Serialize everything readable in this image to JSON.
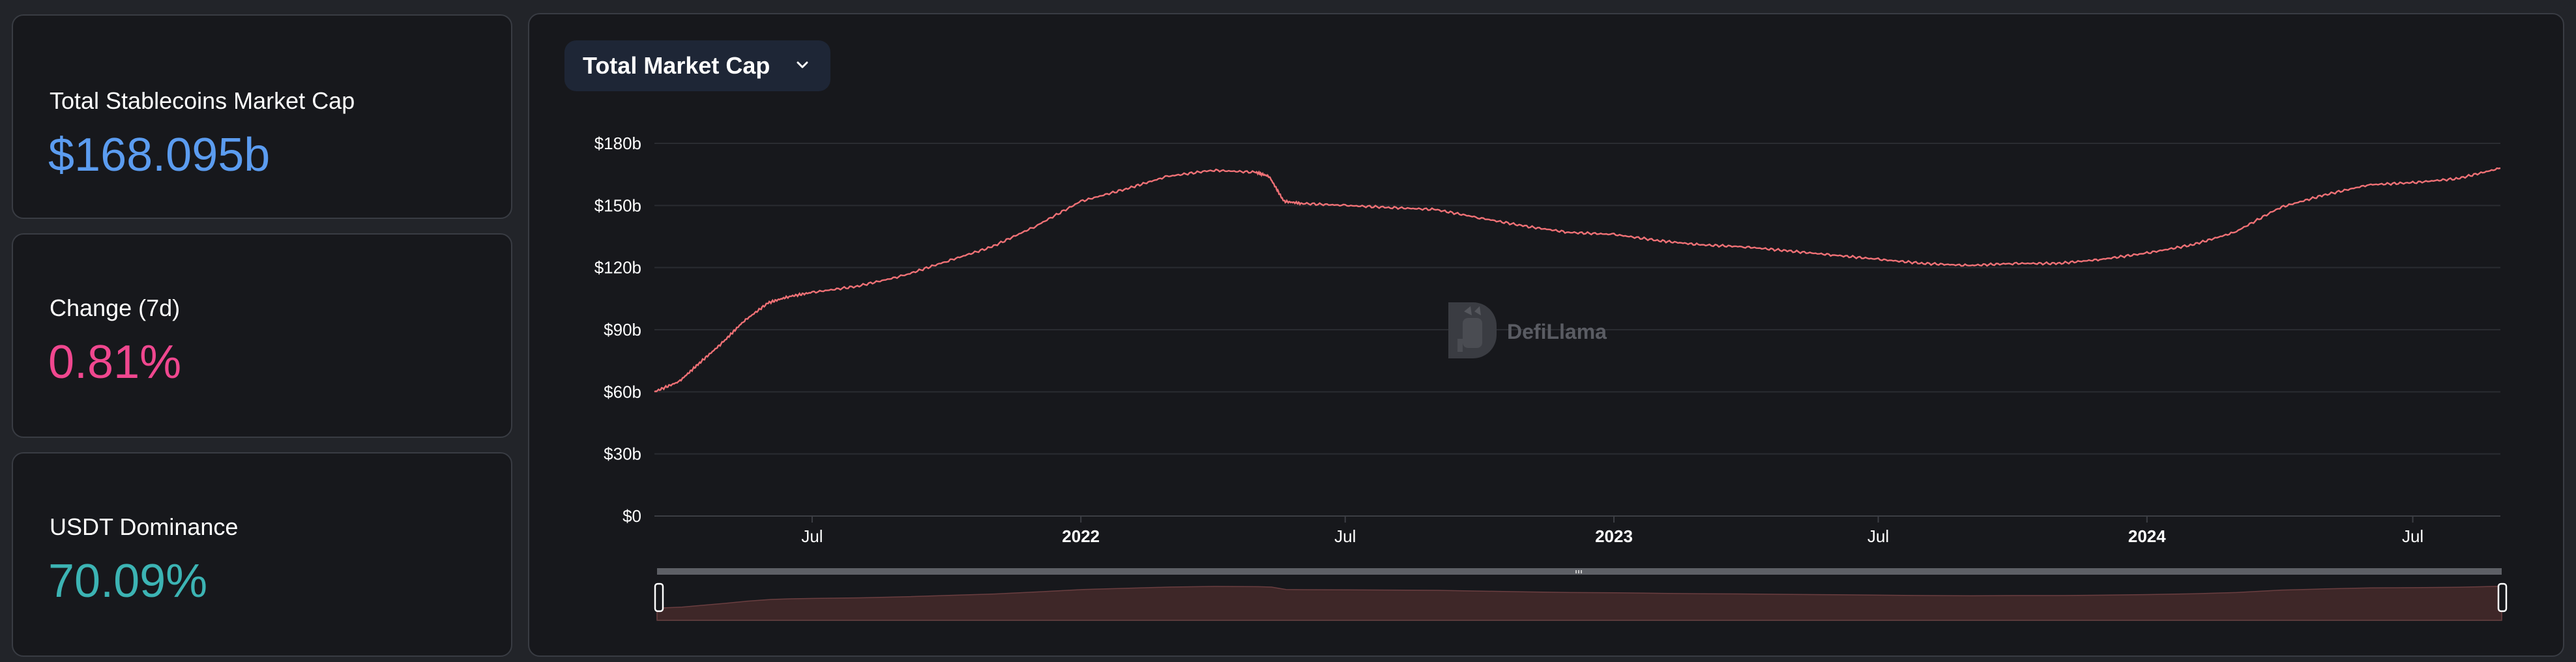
{
  "stats": [
    {
      "label": "Total Stablecoins Market Cap",
      "value": "$168.095b",
      "color": "#5b9cf0"
    },
    {
      "label": "Change (7d)",
      "value": "0.81%",
      "color": "#f0478f"
    },
    {
      "label": "USDT Dominance",
      "value": "70.09%",
      "color": "#3cb4b4"
    }
  ],
  "metric_select": {
    "label": "Total Market Cap",
    "icon": "chevron-down-icon"
  },
  "watermark": {
    "text": "DefiLlama",
    "icon": "llama-logo-icon"
  },
  "colors": {
    "line": "#f07176",
    "grid": "#2a2c31",
    "brush_fill": "#3e2728",
    "brush_bar": "#5e6066"
  },
  "chart_data": {
    "type": "line",
    "title": "",
    "xlabel": "",
    "ylabel": "",
    "ylim": [
      0,
      180
    ],
    "y_ticks": [
      0,
      30,
      60,
      90,
      120,
      150,
      180
    ],
    "y_tick_labels": [
      "$0",
      "$30b",
      "$60b",
      "$90b",
      "$120b",
      "$150b",
      "$180b"
    ],
    "x_range": [
      "2021-03-15",
      "2024-08-30"
    ],
    "x_ticks": [
      {
        "date": "2021-07-01",
        "label": "Jul",
        "bold": false
      },
      {
        "date": "2022-01-01",
        "label": "2022",
        "bold": true
      },
      {
        "date": "2022-07-01",
        "label": "Jul",
        "bold": false
      },
      {
        "date": "2023-01-01",
        "label": "2023",
        "bold": true
      },
      {
        "date": "2023-07-01",
        "label": "Jul",
        "bold": false
      },
      {
        "date": "2024-01-01",
        "label": "2024",
        "bold": true
      },
      {
        "date": "2024-07-01",
        "label": "Jul",
        "bold": false
      }
    ],
    "grid": true,
    "series": [
      {
        "x": [
          "2021-03-15",
          "2021-04-01",
          "2021-04-15",
          "2021-05-01",
          "2021-05-15",
          "2021-06-01",
          "2021-06-15",
          "2021-07-01",
          "2021-08-01",
          "2021-09-01",
          "2021-10-01",
          "2021-11-01",
          "2021-12-01",
          "2022-01-01",
          "2022-02-01",
          "2022-03-01",
          "2022-04-01",
          "2022-05-01",
          "2022-05-10",
          "2022-05-20",
          "2022-06-01",
          "2022-07-01",
          "2022-08-01",
          "2022-09-01",
          "2022-10-01",
          "2022-11-01",
          "2022-12-01",
          "2023-01-01",
          "2023-02-01",
          "2023-03-01",
          "2023-04-01",
          "2023-05-01",
          "2023-06-01",
          "2023-07-01",
          "2023-08-01",
          "2023-09-01",
          "2023-10-01",
          "2023-11-01",
          "2023-12-01",
          "2024-01-01",
          "2024-02-01",
          "2024-03-01",
          "2024-04-01",
          "2024-05-01",
          "2024-06-01",
          "2024-07-01",
          "2024-08-01",
          "2024-08-30"
        ],
        "y": [
          60,
          65,
          74,
          84,
          94,
          103,
          106,
          108,
          111,
          116,
          123,
          130,
          140,
          152,
          158,
          164,
          167,
          166,
          164,
          152,
          151,
          150,
          149,
          148,
          144,
          140,
          137,
          136,
          133,
          131,
          130,
          128,
          126,
          124,
          122,
          121,
          122,
          122,
          124,
          127,
          131,
          137,
          149,
          155,
          160,
          161,
          163,
          168
        ]
      }
    ]
  }
}
